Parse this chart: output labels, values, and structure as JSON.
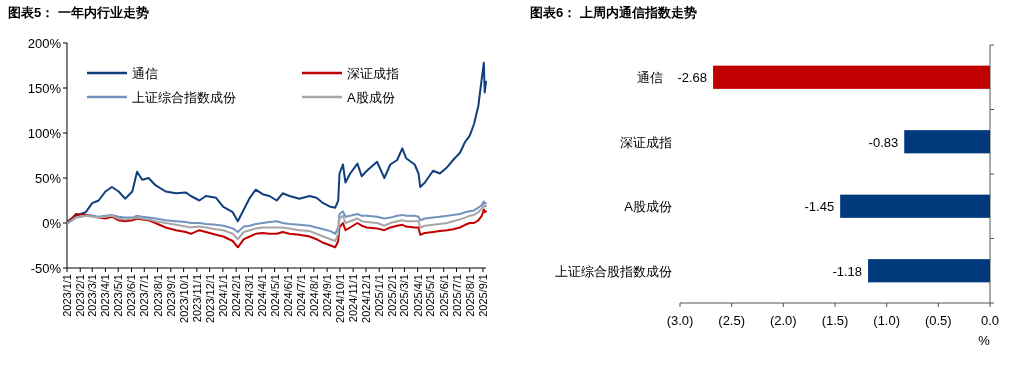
{
  "chart_data": [
    {
      "type": "line",
      "title": "图表5：  一年内行业走势",
      "grid": false,
      "legend": "top",
      "marker": "none",
      "line_style": "solid",
      "x": [
        "2023-01-03",
        "2023-01-22",
        "2023-02-14",
        "2023-03-01",
        "2023-03-16",
        "2023-04-01",
        "2023-04-16",
        "2023-05-02",
        "2023-05-17",
        "2023-06-03",
        "2023-06-14",
        "2023-06-26",
        "2023-07-11",
        "2023-07-27",
        "2023-08-20",
        "2023-09-13",
        "2023-10-06",
        "2023-10-18",
        "2023-11-07",
        "2023-11-22",
        "2023-12-16",
        "2024-01-02",
        "2024-01-24",
        "2024-02-05",
        "2024-02-19",
        "2024-03-04",
        "2024-03-18",
        "2024-04-03",
        "2024-04-19",
        "2024-05-06",
        "2024-05-20",
        "2024-06-05",
        "2024-06-28",
        "2024-07-22",
        "2024-08-07",
        "2024-08-23",
        "2024-09-09",
        "2024-09-20",
        "2024-09-27",
        "2024-09-30",
        "2024-10-08",
        "2024-10-14",
        "2024-10-25",
        "2024-11-11",
        "2024-11-21",
        "2024-12-03",
        "2024-12-27",
        "2025-01-13",
        "2025-01-27",
        "2025-02-12",
        "2025-02-24",
        "2025-03-05",
        "2025-03-25",
        "2025-04-03",
        "2025-04-07",
        "2025-04-18",
        "2025-05-07",
        "2025-05-23",
        "2025-06-09",
        "2025-06-23",
        "2025-07-09",
        "2025-07-21",
        "2025-08-01",
        "2025-08-11",
        "2025-08-21",
        "2025-08-29",
        "2025-09-03",
        "2025-09-05",
        "2025-09-08"
      ],
      "series": [
        {
          "name": "通信",
          "color": "#113f7d",
          "values": [
            2,
            8,
            12,
            22,
            25,
            35,
            40,
            35,
            27,
            35,
            57,
            48,
            50,
            42,
            35,
            33,
            34,
            30,
            25,
            30,
            28,
            18,
            12,
            2,
            15,
            28,
            37,
            32,
            30,
            25,
            33,
            30,
            27,
            30,
            28,
            22,
            18,
            17,
            25,
            55,
            65,
            45,
            55,
            66,
            52,
            58,
            68,
            50,
            65,
            70,
            83,
            72,
            65,
            55,
            40,
            45,
            58,
            55,
            62,
            70,
            78,
            90,
            97,
            110,
            130,
            160,
            178,
            145,
            157
          ]
        },
        {
          "name": "深证成指",
          "color": "#c00000",
          "values": [
            0,
            10,
            9,
            8,
            6,
            5,
            7,
            3,
            2,
            3,
            5,
            4,
            3,
            0,
            -5,
            -8,
            -10,
            -12,
            -8,
            -10,
            -13,
            -15,
            -20,
            -27,
            -18,
            -15,
            -12,
            -11,
            -12,
            -12,
            -10,
            -12,
            -13,
            -15,
            -18,
            -22,
            -25,
            -27,
            -20,
            -5,
            0,
            -8,
            -5,
            0,
            -3,
            -5,
            -6,
            -8,
            -5,
            -3,
            -2,
            -4,
            -5,
            -5,
            -13,
            -11,
            -10,
            -9,
            -8,
            -7,
            -5,
            -2,
            0,
            0,
            3,
            8,
            15,
            12,
            13
          ]
        },
        {
          "name": "上证综合指数成份",
          "color": "#7393bf",
          "values": [
            0,
            6,
            8,
            8,
            7,
            8,
            9,
            7,
            6,
            6,
            8,
            7,
            6,
            5,
            3,
            2,
            1,
            0,
            0,
            -1,
            -2,
            -3,
            -6,
            -10,
            -4,
            -3,
            -1,
            0,
            1,
            2,
            0,
            -1,
            -2,
            -3,
            -5,
            -7,
            -9,
            -12,
            -5,
            10,
            13,
            7,
            8,
            10,
            8,
            8,
            7,
            5,
            6,
            8,
            9,
            8,
            8,
            7,
            3,
            5,
            6,
            7,
            8,
            9,
            10,
            12,
            13,
            14,
            17,
            20,
            24,
            22,
            22
          ]
        },
        {
          "name": "A股成份",
          "color": "#a6a6a6",
          "values": [
            0,
            6,
            8,
            7,
            6,
            7,
            8,
            5,
            4,
            5,
            6,
            5,
            4,
            2,
            0,
            -2,
            -4,
            -5,
            -4,
            -5,
            -7,
            -8,
            -12,
            -18,
            -10,
            -8,
            -6,
            -5,
            -5,
            -5,
            -5,
            -6,
            -8,
            -9,
            -12,
            -15,
            -18,
            -20,
            -12,
            5,
            8,
            0,
            2,
            5,
            2,
            1,
            0,
            -3,
            0,
            2,
            3,
            2,
            2,
            2,
            -5,
            -3,
            -2,
            -1,
            0,
            2,
            4,
            6,
            8,
            9,
            12,
            16,
            20,
            18,
            19
          ]
        }
      ],
      "ylim": [
        -50,
        200
      ],
      "yticks": [
        {
          "value": -50,
          "label": "-50%"
        },
        {
          "value": 0,
          "label": "0%"
        },
        {
          "value": 50,
          "label": "50%"
        },
        {
          "value": 100,
          "label": "100%"
        },
        {
          "value": 150,
          "label": "150%"
        },
        {
          "value": 200,
          "label": "200%"
        }
      ],
      "xlim": [
        "2023-01-01",
        "2025-09-08"
      ],
      "xticks": [
        {
          "value": "2023-01-01",
          "label": "2023/1/1"
        },
        {
          "value": "2023-02-01",
          "label": "2023/2/1"
        },
        {
          "value": "2023-03-01",
          "label": "2023/3/1"
        },
        {
          "value": "2023-04-01",
          "label": "2023/4/1"
        },
        {
          "value": "2023-05-01",
          "label": "2023/5/1"
        },
        {
          "value": "2023-06-01",
          "label": "2023/6/1"
        },
        {
          "value": "2023-07-01",
          "label": "2023/7/1"
        },
        {
          "value": "2023-08-01",
          "label": "2023/8/1"
        },
        {
          "value": "2023-09-01",
          "label": "2023/9/1"
        },
        {
          "value": "2023-10-01",
          "label": "2023/10/1"
        },
        {
          "value": "2023-11-01",
          "label": "2023/11/1"
        },
        {
          "value": "2023-12-01",
          "label": "2023/12/1"
        },
        {
          "value": "2024-01-01",
          "label": "2024/1/1"
        },
        {
          "value": "2024-02-01",
          "label": "2024/2/1"
        },
        {
          "value": "2024-03-01",
          "label": "2024/3/1"
        },
        {
          "value": "2024-04-01",
          "label": "2024/4/1"
        },
        {
          "value": "2024-05-01",
          "label": "2024/5/1"
        },
        {
          "value": "2024-06-01",
          "label": "2024/6/1"
        },
        {
          "value": "2024-07-01",
          "label": "2024/7/1"
        },
        {
          "value": "2024-08-01",
          "label": "2024/8/1"
        },
        {
          "value": "2024-09-01",
          "label": "2024/9/1"
        },
        {
          "value": "2024-10-01",
          "label": "2024/10/1"
        },
        {
          "value": "2024-11-01",
          "label": "2024/11/1"
        },
        {
          "value": "2024-12-01",
          "label": "2024/12/1"
        },
        {
          "value": "2025-01-01",
          "label": "2025/1/1"
        },
        {
          "value": "2025-02-01",
          "label": "2025/2/1"
        },
        {
          "value": "2025-03-01",
          "label": "2025/3/1"
        },
        {
          "value": "2025-04-01",
          "label": "2025/4/1"
        },
        {
          "value": "2025-05-01",
          "label": "2025/5/1"
        },
        {
          "value": "2025-06-01",
          "label": "2025/6/1"
        },
        {
          "value": "2025-07-01",
          "label": "2025/7/1"
        },
        {
          "value": "2025-08-01",
          "label": "2025/8/1"
        },
        {
          "value": "2025-09-01",
          "label": "2025/9/1"
        }
      ]
    },
    {
      "type": "bar",
      "orientation": "horizontal",
      "title": "图表6：  上周内通信指数走势",
      "xlabel": "%",
      "data_labels": true,
      "grid": false,
      "categories": [
        "通信",
        "深证成指",
        "A股成份",
        "上证综合股指数成份"
      ],
      "values": [
        -2.68,
        -0.83,
        -1.45,
        -1.18
      ],
      "colors": [
        "#c00000",
        "#003a7d",
        "#003a7d",
        "#003a7d"
      ],
      "xlim": [
        -3,
        0
      ],
      "xticks": [
        {
          "value": -3,
          "label": "(3.0)"
        },
        {
          "value": -2.5,
          "label": "(2.5)"
        },
        {
          "value": -2,
          "label": "(2.0)"
        },
        {
          "value": -1.5,
          "label": "(1.5)"
        },
        {
          "value": -1,
          "label": "(1.0)"
        },
        {
          "value": -0.5,
          "label": "(0.5)"
        },
        {
          "value": 0,
          "label": "0.0"
        }
      ]
    }
  ]
}
